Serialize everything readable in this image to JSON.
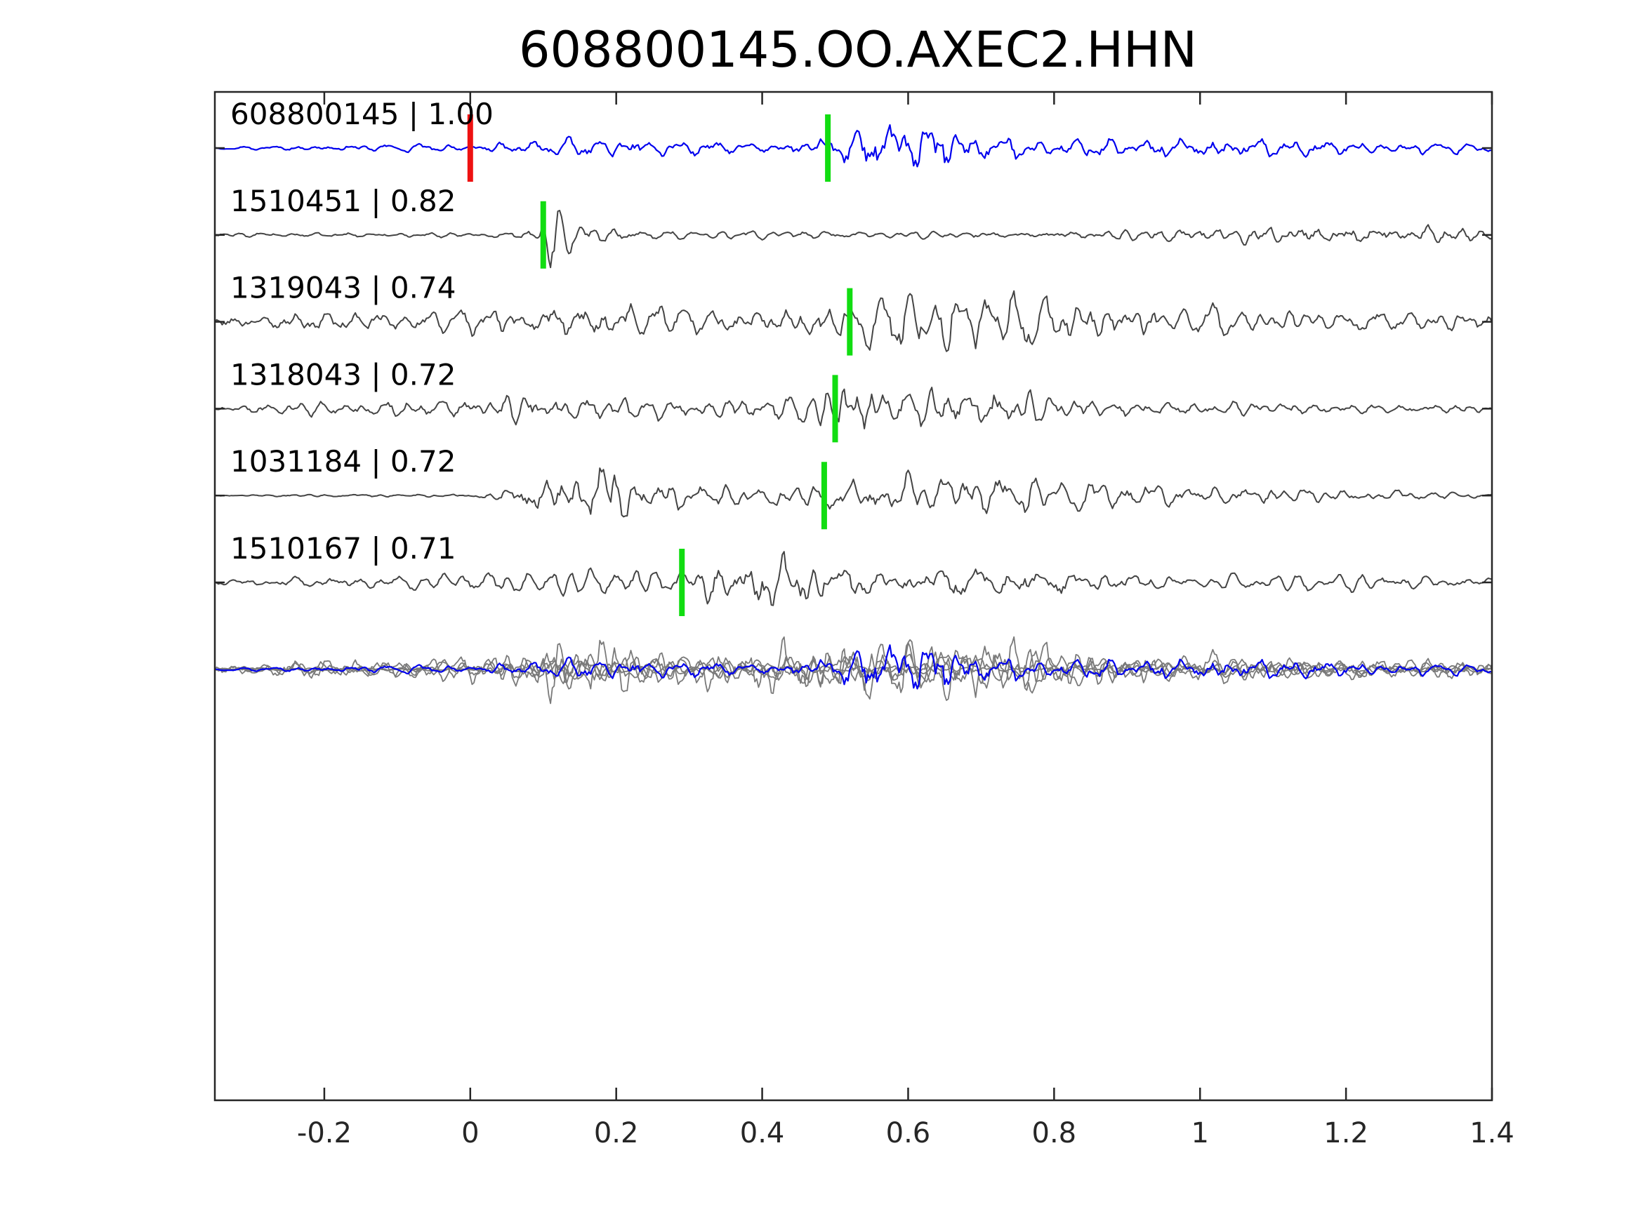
{
  "chart_data": {
    "type": "line",
    "title": "608800145.OO.AXEC2.HHN",
    "xlabel": "",
    "ylabel": "",
    "xlim": [
      -0.35,
      1.4
    ],
    "xticks": [
      -0.2,
      0,
      0.2,
      0.4,
      0.6,
      0.8,
      1,
      1.2,
      1.4
    ],
    "xtick_labels": [
      "-0.2",
      "0",
      "0.2",
      "0.4",
      "0.6",
      "0.8",
      "1",
      "1.2",
      "1.4"
    ],
    "grid": false,
    "legend": "none",
    "overlay_panel": true,
    "colors": {
      "template": "#0000ee",
      "match": "#444444",
      "overlay_match": "#7a7a7a",
      "pick_reference": "#ee1111",
      "pick_match": "#11dd11",
      "axes": "#262626"
    },
    "traces": [
      {
        "id": "608800145",
        "score": "1.00",
        "label": "608800145 | 1.00",
        "color": "template",
        "pick_times": [
          0.0,
          0.49
        ],
        "pick_colors": [
          "pick_reference",
          "pick_match"
        ],
        "envelope": [
          [
            -0.35,
            0.03
          ],
          [
            -0.1,
            0.12
          ],
          [
            0.0,
            0.1
          ],
          [
            0.08,
            0.22
          ],
          [
            0.18,
            0.3
          ],
          [
            0.3,
            0.25
          ],
          [
            0.4,
            0.12
          ],
          [
            0.48,
            0.35
          ],
          [
            0.54,
            0.85
          ],
          [
            0.58,
            1.0
          ],
          [
            0.64,
            0.95
          ],
          [
            0.7,
            0.45
          ],
          [
            0.8,
            0.3
          ],
          [
            0.95,
            0.35
          ],
          [
            1.1,
            0.28
          ],
          [
            1.25,
            0.2
          ],
          [
            1.4,
            0.15
          ]
        ]
      },
      {
        "id": "1510451",
        "score": "0.82",
        "label": "1510451 | 0.82",
        "color": "match",
        "pick_times": [
          0.1
        ],
        "pick_colors": [
          "pick_match"
        ],
        "envelope": [
          [
            -0.35,
            0.06
          ],
          [
            0.05,
            0.08
          ],
          [
            0.09,
            0.25
          ],
          [
            0.11,
            1.0
          ],
          [
            0.14,
            0.35
          ],
          [
            0.2,
            0.18
          ],
          [
            0.5,
            0.1
          ],
          [
            0.8,
            0.12
          ],
          [
            0.95,
            0.2
          ],
          [
            1.15,
            0.35
          ],
          [
            1.3,
            0.25
          ],
          [
            1.4,
            0.15
          ]
        ]
      },
      {
        "id": "1319043",
        "score": "0.74",
        "label": "1319043 | 0.74",
        "color": "match",
        "pick_times": [
          0.52
        ],
        "pick_colors": [
          "pick_match"
        ],
        "envelope": [
          [
            -0.35,
            0.2
          ],
          [
            0.0,
            0.35
          ],
          [
            0.1,
            0.65
          ],
          [
            0.13,
            0.6
          ],
          [
            0.25,
            0.45
          ],
          [
            0.4,
            0.35
          ],
          [
            0.5,
            0.55
          ],
          [
            0.55,
            0.9
          ],
          [
            0.65,
            0.85
          ],
          [
            0.75,
            0.95
          ],
          [
            0.85,
            0.6
          ],
          [
            1.0,
            0.45
          ],
          [
            1.2,
            0.35
          ],
          [
            1.4,
            0.25
          ]
        ]
      },
      {
        "id": "1318043",
        "score": "0.72",
        "label": "1318043 | 0.72",
        "color": "match",
        "pick_times": [
          0.5
        ],
        "pick_colors": [
          "pick_match"
        ],
        "envelope": [
          [
            -0.35,
            0.15
          ],
          [
            0.0,
            0.3
          ],
          [
            0.12,
            0.45
          ],
          [
            0.2,
            0.4
          ],
          [
            0.4,
            0.3
          ],
          [
            0.46,
            0.5
          ],
          [
            0.5,
            0.95
          ],
          [
            0.54,
            0.9
          ],
          [
            0.62,
            0.55
          ],
          [
            0.72,
            0.75
          ],
          [
            0.8,
            0.3
          ],
          [
            1.0,
            0.2
          ],
          [
            1.2,
            0.18
          ],
          [
            1.4,
            0.12
          ]
        ]
      },
      {
        "id": "1031184",
        "score": "0.72",
        "label": "1031184 | 0.72",
        "color": "match",
        "pick_times": [
          0.485
        ],
        "pick_colors": [
          "pick_match"
        ],
        "envelope": [
          [
            -0.35,
            0.03
          ],
          [
            0.0,
            0.05
          ],
          [
            0.05,
            0.2
          ],
          [
            0.1,
            0.6
          ],
          [
            0.18,
            0.95
          ],
          [
            0.25,
            0.45
          ],
          [
            0.4,
            0.3
          ],
          [
            0.5,
            0.4
          ],
          [
            0.58,
            0.6
          ],
          [
            0.7,
            0.6
          ],
          [
            0.82,
            0.45
          ],
          [
            1.0,
            0.25
          ],
          [
            1.2,
            0.2
          ],
          [
            1.4,
            0.05
          ]
        ]
      },
      {
        "id": "1510167",
        "score": "0.71",
        "label": "1510167 | 0.71",
        "color": "match",
        "pick_times": [
          0.29
        ],
        "pick_colors": [
          "pick_match"
        ],
        "envelope": [
          [
            -0.35,
            0.12
          ],
          [
            0.0,
            0.25
          ],
          [
            0.15,
            0.4
          ],
          [
            0.29,
            0.35
          ],
          [
            0.37,
            0.85
          ],
          [
            0.46,
            0.95
          ],
          [
            0.55,
            0.4
          ],
          [
            0.72,
            0.55
          ],
          [
            0.8,
            0.4
          ],
          [
            1.0,
            0.2
          ],
          [
            1.2,
            0.25
          ],
          [
            1.4,
            0.1
          ]
        ]
      }
    ]
  }
}
